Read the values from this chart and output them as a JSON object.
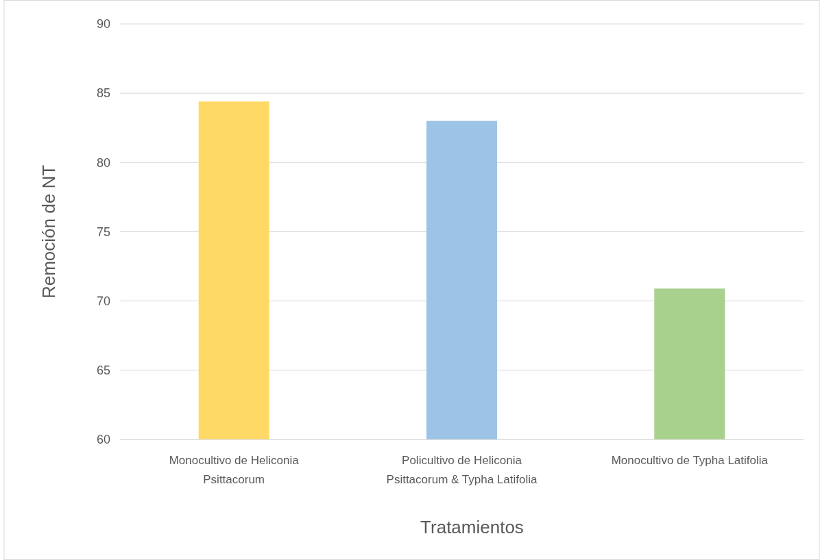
{
  "chart_data": {
    "type": "bar",
    "xlabel": "Tratamientos",
    "ylabel": "Remoción de NT",
    "categories": [
      "Monocultivo de Heliconia Psittacorum",
      "Policultivo de Heliconia Psittacorum & Typha Latifolia",
      "Monocultivo de Typha Latifolia"
    ],
    "values": [
      84.4,
      83.0,
      70.9
    ],
    "colors": [
      "#ffd966",
      "#9dc3e6",
      "#a9d18e"
    ],
    "ylim": [
      60,
      90
    ],
    "yticks": [
      60,
      65,
      70,
      75,
      80,
      85,
      90
    ],
    "grid": "y"
  }
}
